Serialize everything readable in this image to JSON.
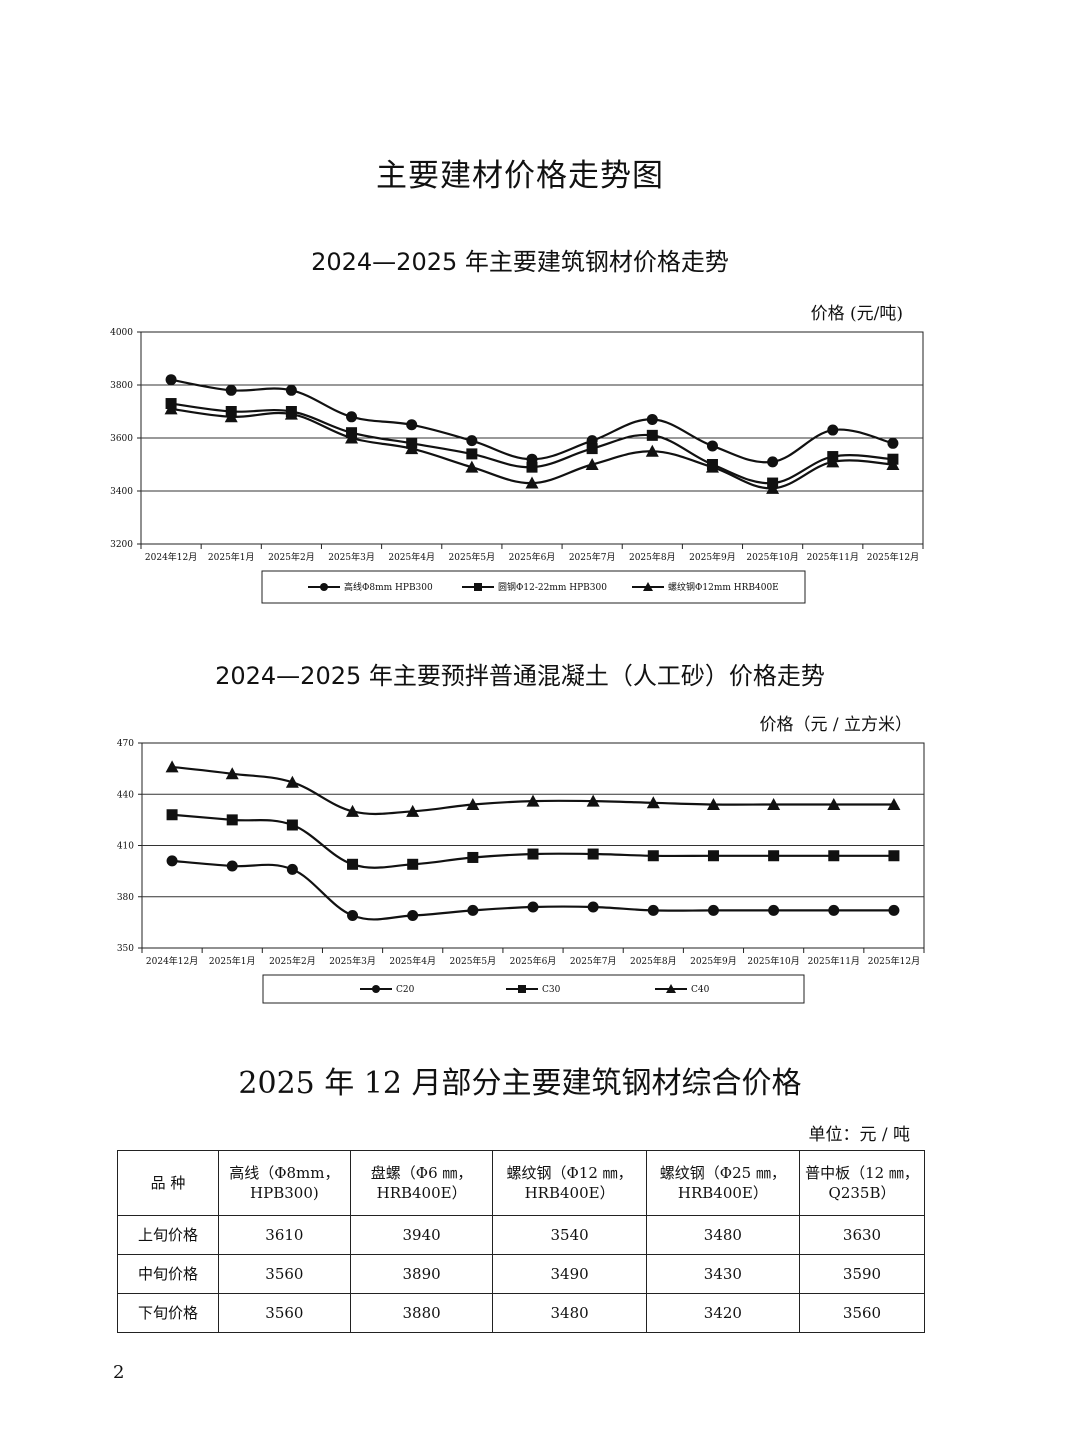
{
  "page_title": "主要建材价格走势图",
  "steel_chart": {
    "title": "2024—2025 年主要建筑钢材价格走势",
    "unit_label": "价格 (元/吨)"
  },
  "concrete_chart": {
    "title": "2024—2025 年主要预拌普通混凝土（人工砂）价格走势",
    "unit_label": "价格（元 / 立方米）"
  },
  "chart_data": [
    {
      "type": "line",
      "title": "2024—2025 年主要建筑钢材价格走势",
      "ylabel": "价格 (元/吨)",
      "ylim": [
        3200,
        4000
      ],
      "yticks": [
        3200,
        3400,
        3600,
        3800,
        4000
      ],
      "grid": true,
      "legend": "bottom",
      "categories": [
        "2024年12月",
        "2025年1月",
        "2025年2月",
        "2025年3月",
        "2025年4月",
        "2025年5月",
        "2025年6月",
        "2025年7月",
        "2025年8月",
        "2025年9月",
        "2025年10月",
        "2025年11月",
        "2025年12月"
      ],
      "series": [
        {
          "name": "高线Φ8mm HPB300",
          "marker": "circle",
          "values": [
            3820,
            3780,
            3780,
            3680,
            3650,
            3590,
            3520,
            3590,
            3670,
            3570,
            3510,
            3630,
            3580
          ]
        },
        {
          "name": "圆钢Φ12-22mm HPB300",
          "marker": "square",
          "values": [
            3730,
            3700,
            3700,
            3620,
            3580,
            3540,
            3490,
            3560,
            3610,
            3500,
            3430,
            3530,
            3520
          ]
        },
        {
          "name": "螺纹钢Φ12mm HRB400E",
          "marker": "triangle",
          "values": [
            3710,
            3680,
            3690,
            3600,
            3560,
            3490,
            3430,
            3500,
            3550,
            3490,
            3410,
            3510,
            3500
          ]
        }
      ]
    },
    {
      "type": "line",
      "title": "2024—2025 年主要预拌普通混凝土（人工砂）价格走势",
      "ylabel": "价格（元 / 立方米）",
      "ylim": [
        350,
        470
      ],
      "yticks": [
        350,
        380,
        410,
        440,
        470
      ],
      "grid": true,
      "legend": "bottom",
      "categories": [
        "2024年12月",
        "2025年1月",
        "2025年2月",
        "2025年3月",
        "2025年4月",
        "2025年5月",
        "2025年6月",
        "2025年7月",
        "2025年8月",
        "2025年9月",
        "2025年10月",
        "2025年11月",
        "2025年12月"
      ],
      "series": [
        {
          "name": "C20",
          "marker": "circle",
          "values": [
            401,
            398,
            396,
            369,
            369,
            372,
            374,
            374,
            372,
            372,
            372,
            372,
            372
          ]
        },
        {
          "name": "C30",
          "marker": "square",
          "values": [
            428,
            425,
            422,
            399,
            399,
            403,
            405,
            405,
            404,
            404,
            404,
            404,
            404
          ]
        },
        {
          "name": "C40",
          "marker": "triangle",
          "values": [
            456,
            452,
            447,
            430,
            430,
            434,
            436,
            436,
            435,
            434,
            434,
            434,
            434
          ]
        }
      ]
    }
  ],
  "steel_table": {
    "title": "2025 年 12 月部分主要建筑钢材综合价格",
    "unit": "单位：元 / 吨",
    "headers": [
      "品 种",
      "高线（Φ8mm，HPB300)",
      "盘螺（Φ6 ㎜，HRB400E）",
      "螺纹钢（Φ12 ㎜，HRB400E）",
      "螺纹钢（Φ25 ㎜，HRB400E）",
      "普中板（12 ㎜，Q235B）"
    ],
    "rows": [
      [
        "上旬价格",
        "3610",
        "3940",
        "3540",
        "3480",
        "3630"
      ],
      [
        "中旬价格",
        "3560",
        "3890",
        "3490",
        "3430",
        "3590"
      ],
      [
        "下旬价格",
        "3560",
        "3880",
        "3480",
        "3420",
        "3560"
      ]
    ]
  },
  "page_number": "2"
}
